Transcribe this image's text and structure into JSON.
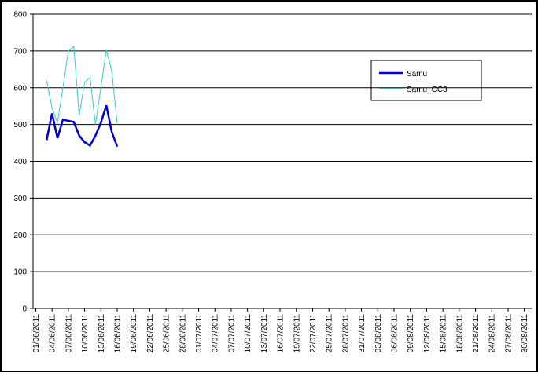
{
  "chart_data": {
    "type": "line",
    "categories": [
      "01/06/2011",
      null,
      null,
      "04/06/2011",
      null,
      null,
      "07/06/2011",
      null,
      null,
      "10/06/2011",
      null,
      null,
      "13/06/2011",
      null,
      null,
      "16/06/2011",
      null,
      null,
      "19/06/2011",
      null,
      null,
      "22/06/2011",
      null,
      null,
      "25/06/2011",
      null,
      null,
      "28/06/2011",
      null,
      null,
      "01/07/2011",
      null,
      null,
      "04/07/2011",
      null,
      null,
      "07/07/2011",
      null,
      null,
      "10/07/2011",
      null,
      null,
      "13/07/2011",
      null,
      null,
      "16/07/2011",
      null,
      null,
      "19/07/2011",
      null,
      null,
      "22/07/2011",
      null,
      null,
      "25/07/2011",
      null,
      null,
      "28/07/2011",
      null,
      null,
      "31/07/2011",
      null,
      null,
      "03/08/2011",
      null,
      null,
      "06/08/2011",
      null,
      null,
      "09/08/2011",
      null,
      null,
      "12/08/2011",
      null,
      null,
      "15/08/2011",
      null,
      null,
      "18/08/2011",
      null,
      null,
      "21/08/2011",
      null,
      null,
      "24/08/2011",
      null,
      null,
      "27/08/2011",
      null,
      null,
      "30/08/2011",
      null
    ],
    "series": [
      {
        "name": "Samu",
        "color": "#0000cc",
        "values": [
          null,
          null,
          458,
          530,
          463,
          513,
          510,
          507,
          470,
          452,
          443,
          470,
          505,
          552,
          480,
          440,
          null,
          null,
          null,
          null,
          null,
          null,
          null,
          null,
          null,
          null,
          null,
          null,
          null,
          null,
          null,
          null,
          null,
          null,
          null,
          null,
          null,
          null,
          null,
          null,
          null,
          null,
          null,
          null,
          null,
          null,
          null,
          null,
          null,
          null,
          null,
          null,
          null,
          null,
          null,
          null,
          null,
          null,
          null,
          null,
          null,
          null,
          null,
          null,
          null,
          null,
          null,
          null,
          null,
          null,
          null,
          null,
          null,
          null,
          null,
          null,
          null,
          null,
          null,
          null,
          null,
          null,
          null,
          null,
          null,
          null,
          null,
          null,
          null,
          null,
          null,
          null
        ]
      },
      {
        "name": "Samu_CC3",
        "color": "#33cccc",
        "values": [
          null,
          null,
          620,
          545,
          505,
          600,
          700,
          712,
          525,
          615,
          628,
          500,
          600,
          703,
          645,
          503,
          null,
          null,
          null,
          null,
          null,
          null,
          null,
          null,
          null,
          null,
          null,
          null,
          null,
          null,
          null,
          null,
          null,
          null,
          null,
          null,
          null,
          null,
          null,
          null,
          null,
          null,
          null,
          null,
          null,
          null,
          null,
          null,
          null,
          null,
          null,
          null,
          null,
          null,
          null,
          null,
          null,
          null,
          null,
          null,
          null,
          null,
          null,
          null,
          null,
          null,
          null,
          null,
          null,
          null,
          null,
          null,
          null,
          null,
          null,
          null,
          null,
          null,
          null,
          null,
          null,
          null,
          null,
          null,
          null,
          null,
          null,
          null,
          null,
          null,
          null,
          null
        ]
      }
    ],
    "ylim": [
      0,
      800
    ],
    "yticks": [
      0,
      100,
      200,
      300,
      400,
      500,
      600,
      700,
      800
    ],
    "grid": true
  }
}
